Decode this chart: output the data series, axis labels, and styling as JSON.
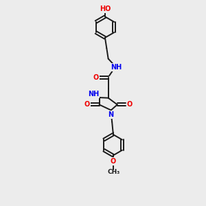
{
  "bg_color": "#ececec",
  "bond_color": "#1a1a1a",
  "bond_width": 1.4,
  "atom_colors": {
    "N": "#0000ee",
    "O": "#ee0000"
  },
  "font_size": 7.0,
  "fig_size": [
    3.0,
    3.0
  ],
  "dpi": 100,
  "xlim": [
    0,
    10
  ],
  "ylim": [
    0,
    10
  ]
}
